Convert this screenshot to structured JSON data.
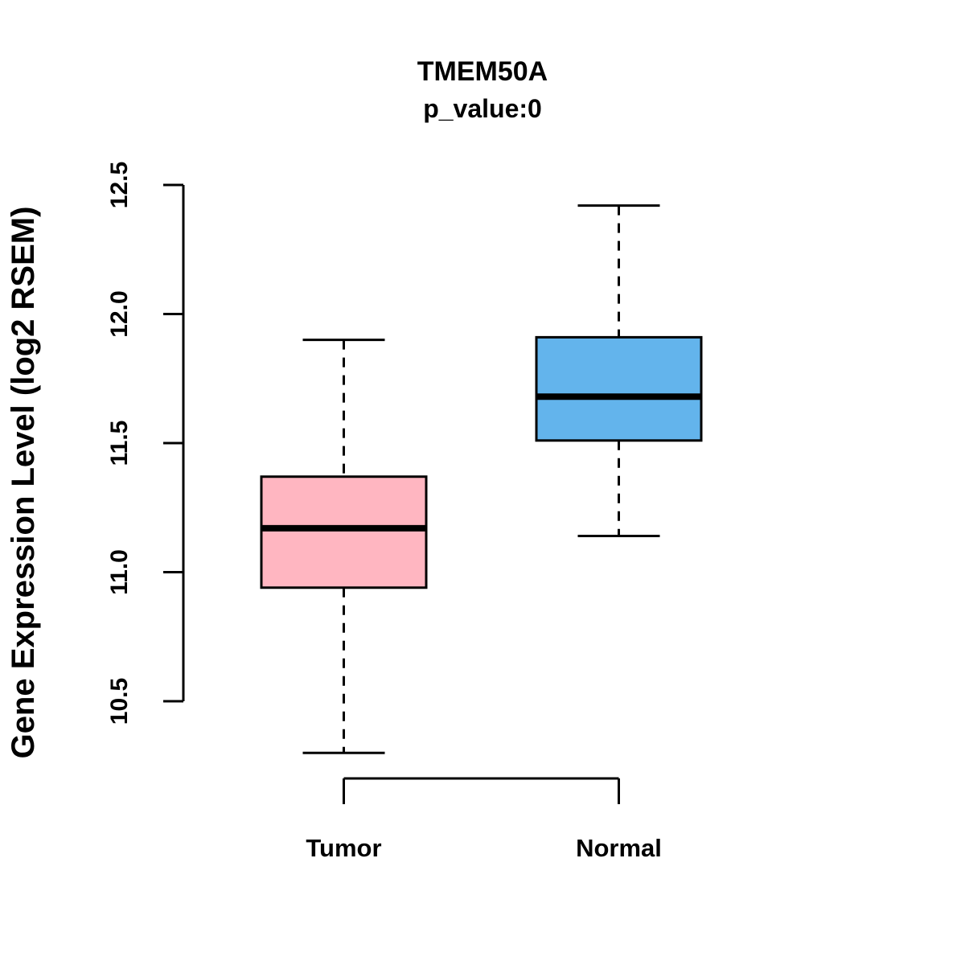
{
  "chart_data": {
    "type": "boxplot",
    "title": "TMEM50A",
    "subtitle": "p_value:0",
    "ylabel": "Gene Expression Level (log2 RSEM)",
    "xlabel": "",
    "categories": [
      "Tumor",
      "Normal"
    ],
    "yticks": [
      "10.5",
      "11.0",
      "11.5",
      "12.0",
      "12.5"
    ],
    "ytick_values": [
      10.5,
      11.0,
      11.5,
      12.0,
      12.5
    ],
    "ylim": [
      10.5,
      12.5
    ],
    "grid": false,
    "legend": "none",
    "series": [
      {
        "name": "Tumor",
        "box_color": "#FFB6C1",
        "border_color": "#000000",
        "whisker_low": 10.3,
        "q1": 10.94,
        "median": 11.17,
        "q3": 11.37,
        "whisker_high": 11.9
      },
      {
        "name": "Normal",
        "box_color": "#63B4EC",
        "border_color": "#000000",
        "whisker_low": 11.14,
        "q1": 11.51,
        "median": 11.68,
        "q3": 11.91,
        "whisker_high": 12.42
      }
    ]
  }
}
